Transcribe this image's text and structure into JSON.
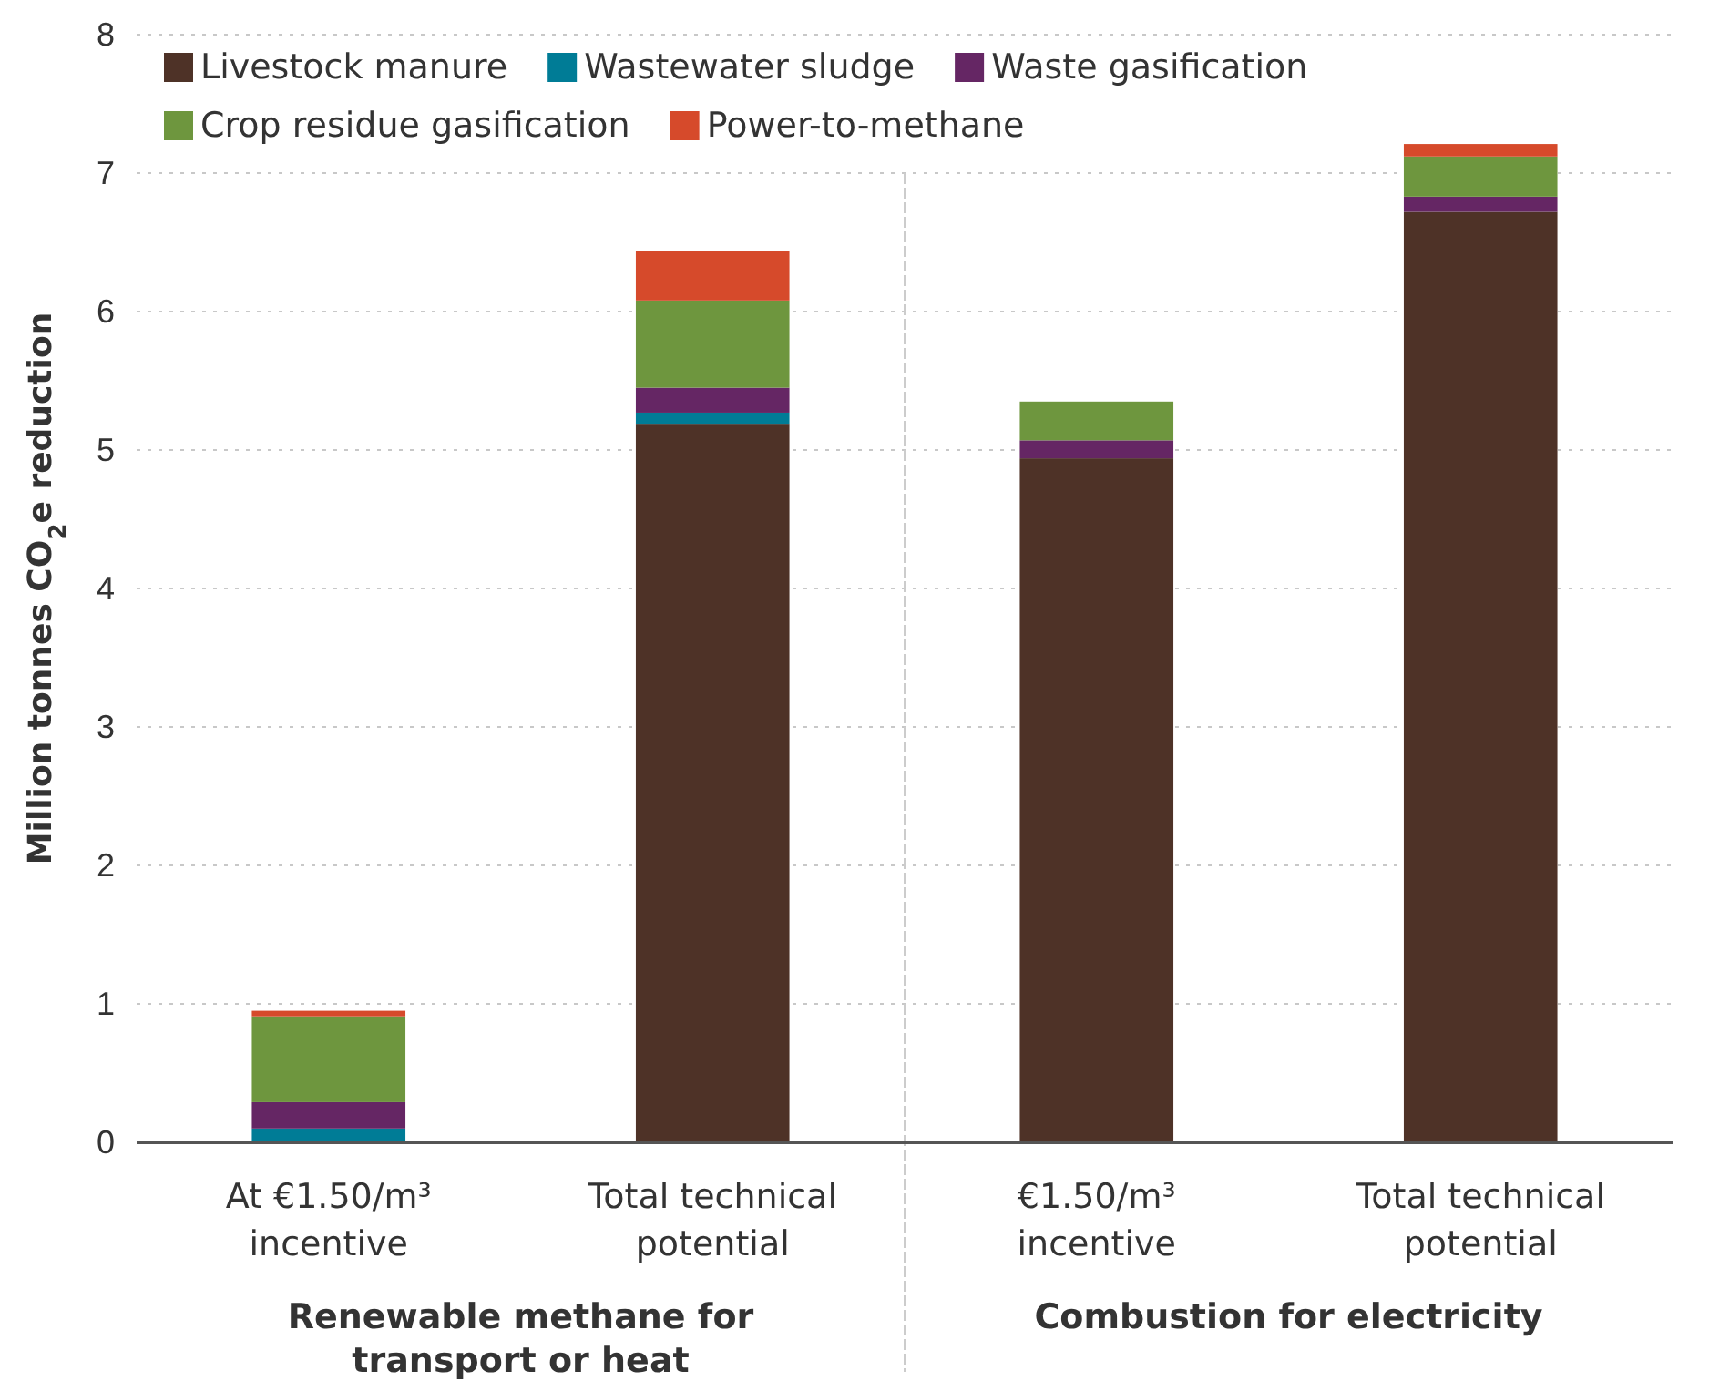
{
  "chart_data": {
    "type": "bar",
    "stacked": true,
    "ylabel": "Million tonnes CO$_{2}$e reduction",
    "categories": [
      "At €1.50/m³ incentive",
      "Total technical potential",
      "€1.50/m³ incentive",
      "Total technical potential"
    ],
    "series": [
      {
        "name": "Livestock manure",
        "color": "#4e3227",
        "values": [
          0,
          5.19,
          4.94,
          6.72
        ]
      },
      {
        "name": "Wastewater sludge",
        "color": "#007c96",
        "values": [
          0.1,
          0.08,
          0,
          0
        ]
      },
      {
        "name": "Waste gasification",
        "color": "#652664",
        "values": [
          0.19,
          0.18,
          0.13,
          0.11
        ]
      },
      {
        "name": "Crop residue gasification",
        "color": "#6e963e",
        "values": [
          0.62,
          0.63,
          0.28,
          0.29
        ]
      },
      {
        "name": "Power-to-methane",
        "color": "#d64a2b",
        "values": [
          0.04,
          0.36,
          0,
          0.09
        ]
      }
    ],
    "ylim": [
      0,
      8
    ],
    "yticks": [
      0,
      1,
      2,
      3,
      4,
      5,
      6,
      7,
      8
    ],
    "grid": "y",
    "legend": "top left",
    "annotations": [
      "Renewable methane for transport or heat",
      "Combustion for electricity"
    ]
  }
}
